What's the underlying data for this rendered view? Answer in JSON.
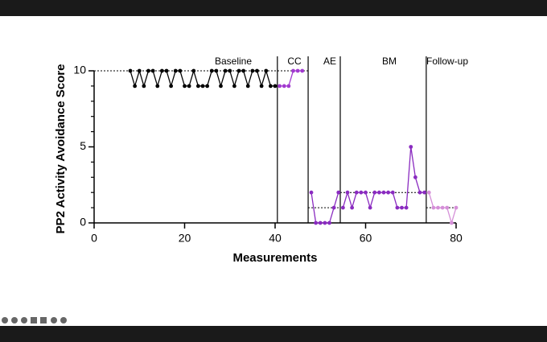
{
  "chart_data": {
    "type": "line",
    "x_label": "Measurements",
    "y_label": "PP2 Activity Avoidance Score",
    "xlim": [
      0,
      80
    ],
    "xticks": [
      0,
      20,
      40,
      60,
      80
    ],
    "ylim": [
      0,
      10
    ],
    "yticks": [
      0,
      5,
      10
    ],
    "minor_yticks": [
      1,
      2,
      3,
      4,
      6,
      7,
      8,
      9
    ],
    "phases": [
      {
        "label": "Baseline",
        "start": 0
      },
      {
        "label": "CC",
        "start": 40.5
      },
      {
        "label": "AE",
        "start": 47.3
      },
      {
        "label": "BM",
        "start": 54.4
      },
      {
        "label": "Follow-up",
        "start": 73.4
      }
    ],
    "mean_lines": [
      {
        "value": 10,
        "x": [
          0,
          47.3
        ]
      },
      {
        "value": 1,
        "x": [
          47.3,
          54.4
        ]
      },
      {
        "value": 2,
        "x": [
          54.4,
          73.4
        ]
      },
      {
        "value": 1,
        "x": [
          73.4,
          80
        ]
      }
    ],
    "series": [
      {
        "color": "#000000",
        "x": [
          8,
          9,
          10,
          11,
          12,
          13,
          14,
          15,
          16,
          17,
          18,
          19,
          20,
          21,
          22,
          23,
          24,
          25,
          26,
          27,
          28,
          29,
          30,
          31,
          32,
          33,
          34,
          35,
          36,
          37,
          38,
          39,
          40
        ],
        "values": [
          10,
          9,
          10,
          9,
          10,
          10,
          9,
          10,
          10,
          9,
          10,
          10,
          9,
          9,
          10,
          9,
          9,
          9,
          10,
          10,
          9,
          10,
          10,
          9,
          10,
          10,
          9,
          10,
          10,
          9,
          10,
          9,
          9
        ]
      },
      {
        "color": "#a23ad0",
        "x": [
          41,
          42,
          43,
          44,
          45,
          46
        ],
        "values": [
          9,
          9,
          9,
          10,
          10,
          10
        ]
      },
      {
        "color": "#8a2bc0",
        "x": [
          48,
          49,
          50,
          51,
          52,
          53,
          54
        ],
        "values": [
          2,
          0,
          0,
          0,
          0,
          1,
          2
        ]
      },
      {
        "color": "#8a2bc0",
        "x": [
          55,
          56,
          57,
          58,
          59,
          60,
          61,
          62,
          63,
          64,
          65,
          66,
          67,
          68,
          69,
          70,
          71,
          72,
          73
        ],
        "values": [
          1,
          2,
          1,
          2,
          2,
          2,
          1,
          2,
          2,
          2,
          2,
          2,
          1,
          1,
          1,
          5,
          3,
          2,
          2
        ]
      },
      {
        "color": "#d58fd8",
        "x": [
          74,
          75,
          76,
          77,
          78,
          79,
          80
        ],
        "values": [
          2,
          1,
          1,
          1,
          1,
          0,
          1
        ]
      }
    ]
  }
}
